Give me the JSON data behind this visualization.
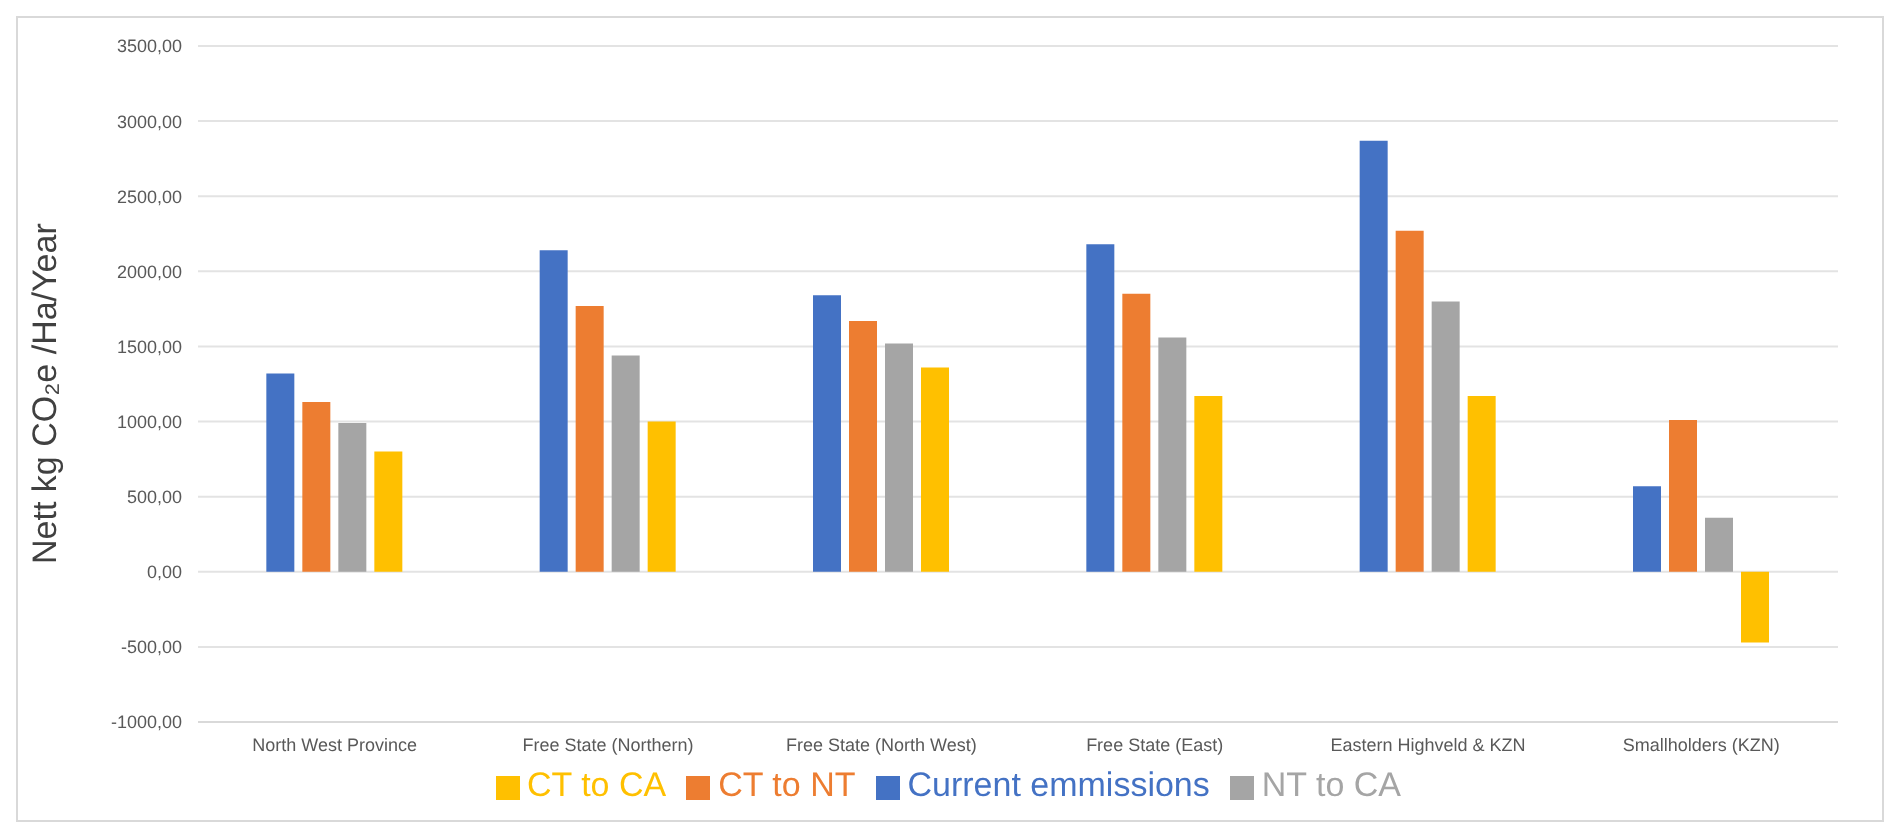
{
  "chart_data": {
    "type": "bar",
    "ylabel": "Nett  kg CO₂e /Ha/Year",
    "categories": [
      "North West Province",
      "Free State (Northern)",
      "Free State (North West)",
      "Free State (East)",
      "Eastern Highveld & KZN",
      "Smallholders (KZN)"
    ],
    "series": [
      {
        "name": "Current emmissions",
        "color": "#4472c4",
        "values": [
          1320,
          2140,
          1840,
          2180,
          2870,
          570
        ]
      },
      {
        "name": "CT to NT",
        "color": "#ed7d31",
        "values": [
          1130,
          1770,
          1670,
          1850,
          2270,
          1010
        ]
      },
      {
        "name": "NT to CA",
        "color": "#a5a5a5",
        "values": [
          990,
          1440,
          1520,
          1560,
          1800,
          360
        ]
      },
      {
        "name": "CT to CA",
        "color": "#ffc000",
        "values": [
          800,
          1000,
          1360,
          1170,
          1170,
          -470
        ]
      }
    ],
    "ylim": [
      -1000,
      3500
    ],
    "yticks": [
      {
        "value": -1000,
        "label": "-1000,00"
      },
      {
        "value": -500,
        "label": "-500,00"
      },
      {
        "value": 0,
        "label": "0,00"
      },
      {
        "value": 500,
        "label": "500,00"
      },
      {
        "value": 1000,
        "label": "1000,00"
      },
      {
        "value": 1500,
        "label": "1500,00"
      },
      {
        "value": 2000,
        "label": "2000,00"
      },
      {
        "value": 2500,
        "label": "2500,00"
      },
      {
        "value": 3000,
        "label": "3000,00"
      },
      {
        "value": 3500,
        "label": "3500,00"
      }
    ],
    "grid": "y",
    "legend": "bottom"
  }
}
